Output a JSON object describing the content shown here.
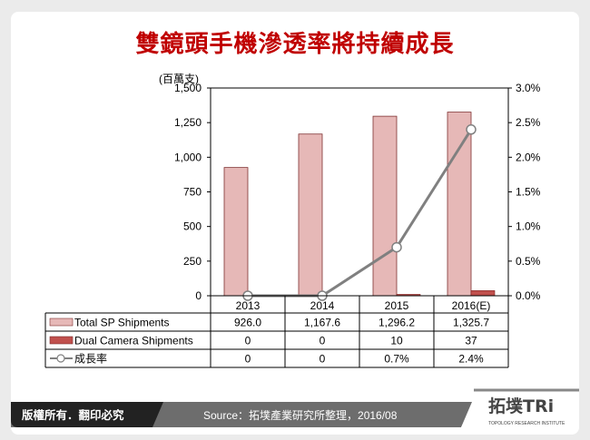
{
  "title": "雙鏡頭手機滲透率將持續成長",
  "chart_data": {
    "type": "bar+line",
    "unit_label": "(百萬支)",
    "categories": [
      "2013",
      "2014",
      "2015",
      "2016(E)"
    ],
    "left_axis": {
      "ylim": [
        0,
        1500
      ],
      "ticks": [
        "0",
        "250",
        "500",
        "750",
        "1,000",
        "1,250",
        "1,500"
      ]
    },
    "right_axis": {
      "ylim": [
        0,
        3.0
      ],
      "ticks": [
        "0.0%",
        "0.5%",
        "1.0%",
        "1.5%",
        "2.0%",
        "2.5%",
        "3.0%"
      ]
    },
    "series": [
      {
        "name": "Total SP Shipments",
        "type": "bar",
        "color": "#e6b8b7",
        "values": [
          926.0,
          1167.6,
          1296.2,
          1325.7
        ],
        "labels": [
          "926.0",
          "1,167.6",
          "1,296.2",
          "1,325.7"
        ]
      },
      {
        "name": "Dual Camera Shipments",
        "type": "bar",
        "color": "#c0504d",
        "values": [
          0,
          0,
          10,
          37
        ],
        "labels": [
          "0",
          "0",
          "10",
          "37"
        ]
      },
      {
        "name": "成長率",
        "type": "line",
        "axis": "right",
        "color": "#808080",
        "values": [
          0,
          0,
          0.7,
          2.4
        ],
        "labels": [
          "0",
          "0",
          "0.7%",
          "2.4%"
        ]
      }
    ],
    "grid": false,
    "legend": "data-table"
  },
  "footer": {
    "copyright": "版權所有．翻印必究",
    "source": "Source：拓墣產業研究所整理，2016/08",
    "logo_text": "拓墣TRi",
    "logo_subtext": "TOPOLOGY RESEARCH INSTITUTE"
  }
}
